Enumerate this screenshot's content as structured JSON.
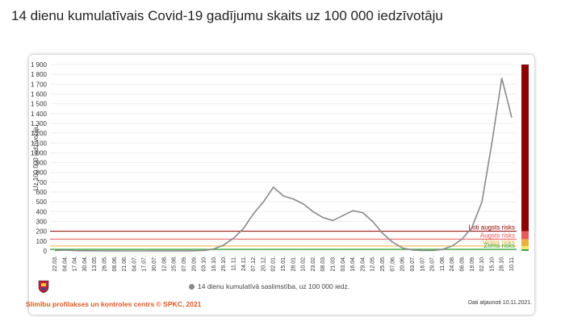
{
  "page": {
    "title": "14 dienu kumulatīvais Covid-19 gadījumu skaits uz 100 000 iedzīvotāju"
  },
  "footer": {
    "source": "Slimību profilakses un kontroles centrs © SPKC, 2021",
    "updated": "Dati atjaunoti 10.11.2021."
  },
  "colors": {
    "line": "#8a8a8a",
    "very_high": "#8b0000",
    "high": "#e85a5a",
    "medium": "#e8b23c",
    "low": "#3aa63a"
  },
  "chart_data": {
    "type": "line",
    "title": "",
    "xlabel": "",
    "ylabel": "Uz 100 000 iedzīvotāju",
    "ylim": [
      0,
      1900
    ],
    "yticks": [
      0,
      100,
      200,
      300,
      400,
      500,
      600,
      700,
      800,
      900,
      1000,
      1100,
      1200,
      1300,
      1400,
      1500,
      1600,
      1700,
      1800,
      1900
    ],
    "ytick_labels": [
      "0",
      "100",
      "200",
      "300",
      "400",
      "500",
      "600",
      "700",
      "800",
      "900",
      "1 000",
      "1 100",
      "1 200",
      "1 300",
      "1 400",
      "1 500",
      "1 600",
      "1 700",
      "1 800",
      "1 900"
    ],
    "categories": [
      "22.03.",
      "04.04.",
      "17.04.",
      "30.04.",
      "13.05.",
      "26.05.",
      "08.06.",
      "21.06.",
      "04.07.",
      "17.07.",
      "30.07.",
      "12.08.",
      "25.08.",
      "07.09.",
      "20.09.",
      "03.10.",
      "16.10.",
      "29.10.",
      "11.11.",
      "24.11.",
      "07.12.",
      "20.12.",
      "02.01.",
      "15.01.",
      "28.01.",
      "10.02.",
      "23.02.",
      "08.03.",
      "21.03.",
      "03.04.",
      "16.04.",
      "29.04.",
      "12.05.",
      "25.05.",
      "07.06.",
      "20.06.",
      "03.07.",
      "16.07.",
      "29.07.",
      "11.08.",
      "24.08.",
      "06.09.",
      "19.09.",
      "02.10.",
      "15.10.",
      "28.10.",
      "10.11."
    ],
    "legend_position": "bottom",
    "series": [
      {
        "name": "14 dienu kumulatīvā saslimstība, uz 100 000 iedz.",
        "values": [
          5,
          8,
          3,
          2,
          2,
          1,
          1,
          0,
          0,
          0,
          1,
          1,
          1,
          1,
          2,
          4,
          20,
          60,
          130,
          230,
          380,
          500,
          650,
          560,
          530,
          480,
          400,
          340,
          310,
          360,
          410,
          390,
          300,
          180,
          90,
          30,
          10,
          5,
          4,
          15,
          50,
          120,
          240,
          500,
          1100,
          1760,
          1360
        ]
      }
    ],
    "risk_levels": [
      {
        "label": "Ļoti augsts risks",
        "threshold": 200
      },
      {
        "label": "Augsts risks",
        "threshold": 120
      },
      {
        "label": "Vidējs risks",
        "threshold": 50
      },
      {
        "label": "Zems risks",
        "threshold": 16
      }
    ]
  }
}
